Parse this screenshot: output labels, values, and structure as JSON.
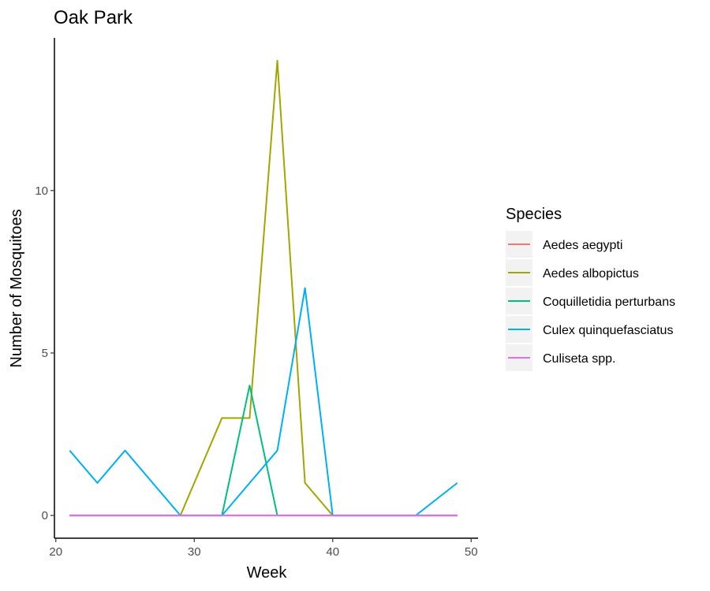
{
  "chart_data": {
    "type": "line",
    "title": "Oak Park",
    "xlabel": "Week",
    "ylabel": "Number of Mosquitoes",
    "xlim": [
      19.9,
      50.5
    ],
    "ylim": [
      -0.7,
      14.7
    ],
    "xticks": [
      20,
      30,
      40,
      50
    ],
    "yticks": [
      0,
      5,
      10
    ],
    "grid": false,
    "legend_title": "Species",
    "legend_position": "right",
    "series": [
      {
        "name": "Aedes aegypti",
        "color": "#F8766D",
        "x": [
          21,
          49
        ],
        "y": [
          0,
          0
        ]
      },
      {
        "name": "Aedes albopictus",
        "color": "#A3A500",
        "x": [
          21,
          29,
          32,
          34,
          36,
          38,
          40,
          49
        ],
        "y": [
          0,
          0,
          3,
          3,
          14,
          1,
          0,
          0
        ]
      },
      {
        "name": "Coquilletidia perturbans",
        "color": "#00BF7D",
        "x": [
          21,
          32,
          34,
          36,
          49
        ],
        "y": [
          0,
          0,
          4,
          0,
          0
        ]
      },
      {
        "name": "Culex quinquefasciatus",
        "color": "#00B0F6",
        "x": [
          21,
          23,
          25,
          29,
          32,
          36,
          38,
          40,
          46,
          49
        ],
        "y": [
          2,
          1,
          2,
          0,
          0,
          2,
          7,
          0,
          0,
          1
        ]
      },
      {
        "name": "Culiseta spp.",
        "color": "#E76BF3",
        "x": [
          21,
          49
        ],
        "y": [
          0,
          0
        ]
      }
    ]
  }
}
